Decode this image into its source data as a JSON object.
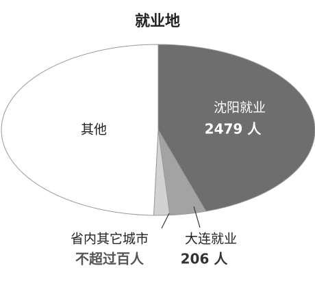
{
  "chart_data": {
    "type": "pie",
    "title": "就业地",
    "categories": [
      "沈阳就业",
      "大连就业",
      "省内其它城市",
      "其他"
    ],
    "values": [
      2479,
      206,
      90,
      2725
    ],
    "value_labels": [
      "2479 人",
      "206 人",
      "不超过百人",
      null
    ],
    "colors": [
      "#6e6e6e",
      "#a3a3a3",
      "#d2d2d2",
      "#ffffff"
    ]
  }
}
